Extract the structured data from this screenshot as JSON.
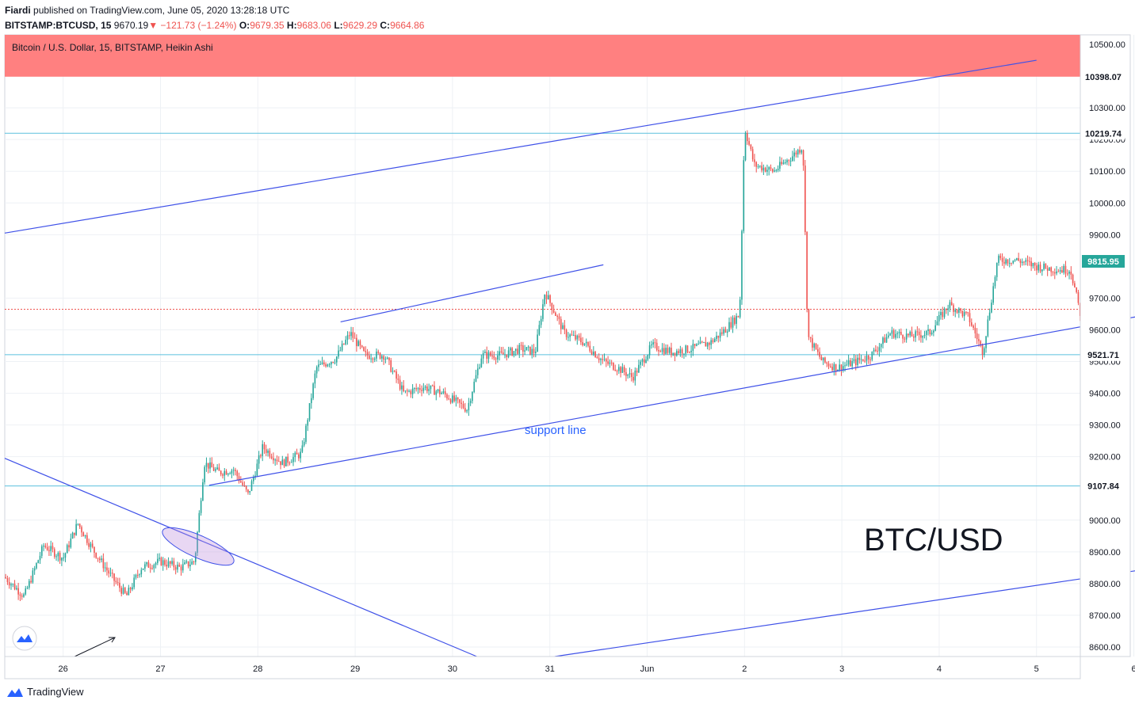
{
  "header": {
    "author": "Fiardi",
    "published_text": "published on TradingView.com, June 05, 2020 13:28:18 UTC",
    "symbol": "BITSTAMP:BTCUSD, 15",
    "last": "9670.19",
    "change": "−121.73 (−1.24%)",
    "o_label": "O:",
    "o": "9679.35",
    "h_label": "H:",
    "h": "9683.06",
    "l_label": "L:",
    "l": "9629.29",
    "c_label": "C:",
    "c": "9664.86"
  },
  "footer": {
    "brand": "TradingView"
  },
  "colors": {
    "up": "#26a69a",
    "down": "#ef5350",
    "trendline": "#3f51e8",
    "hline": "#5bc0de",
    "resistance_zone": "#ff8080",
    "grid": "#eef1f5"
  },
  "chart_data": {
    "type": "candlestick",
    "title": "Bitcoin / U.S. Dollar, 15, BITSTAMP, Heikin Ashi",
    "chart_style": "Heikin Ashi",
    "interval": "15",
    "annotation_text": "support line",
    "watermark": "BTC/USD",
    "x_tick_labels": [
      "26",
      "27",
      "28",
      "29",
      "30",
      "31",
      "Jun",
      "2",
      "3",
      "4",
      "5",
      "6"
    ],
    "y_tick_labels": [
      "10500.00",
      "10300.00",
      "10200.00",
      "10100.00",
      "10000.00",
      "9900.00",
      "9700.00",
      "9600.00",
      "9500.00",
      "9400.00",
      "9300.00",
      "9200.00",
      "9000.00",
      "8900.00",
      "8800.00",
      "8700.00",
      "8600.00"
    ],
    "ylim": [
      8570,
      10530
    ],
    "xlim": [
      25.4,
      6.45
    ],
    "current_price_line": 9664.86,
    "price_tags": [
      {
        "value": 10398.07,
        "label": "10398.07",
        "color": "#131722"
      },
      {
        "value": 10219.74,
        "label": "10219.74",
        "color": "#131722"
      },
      {
        "value": 9815.95,
        "label": "9815.95",
        "color": "#26a69a"
      },
      {
        "value": 9521.71,
        "label": "9521.71",
        "color": "#131722"
      },
      {
        "value": 9107.84,
        "label": "9107.84",
        "color": "#131722"
      }
    ],
    "horizontal_levels": [
      10219.74,
      9521.71,
      9107.84
    ],
    "resistance_zone": [
      10398.07,
      10530
    ],
    "trendlines": [
      {
        "name": "upper channel",
        "from": [
          25.4,
          9905
        ],
        "to": [
          5.0,
          10450
        ]
      },
      {
        "name": "support line",
        "from": [
          27.5,
          9110
        ],
        "to": [
          6.45,
          9665
        ]
      },
      {
        "name": "upper short",
        "from": [
          28.85,
          9625
        ],
        "to": [
          31.55,
          9805
        ]
      },
      {
        "name": "lower descending",
        "from": [
          25.4,
          9195
        ],
        "to": [
          30.25,
          8570
        ]
      },
      {
        "name": "lower channel",
        "from": [
          31.05,
          8570
        ],
        "to": [
          6.45,
          8860
        ]
      }
    ],
    "price_path": [
      [
        25.4,
        8820
      ],
      [
        25.6,
        8760
      ],
      [
        25.8,
        8920
      ],
      [
        26.0,
        8880
      ],
      [
        26.15,
        8990
      ],
      [
        26.3,
        8910
      ],
      [
        26.5,
        8820
      ],
      [
        26.65,
        8760
      ],
      [
        26.8,
        8850
      ],
      [
        27.0,
        8870
      ],
      [
        27.2,
        8850
      ],
      [
        27.35,
        8870
      ],
      [
        27.45,
        9180
      ],
      [
        27.6,
        9150
      ],
      [
        27.75,
        9160
      ],
      [
        27.9,
        9080
      ],
      [
        28.05,
        9230
      ],
      [
        28.25,
        9180
      ],
      [
        28.45,
        9210
      ],
      [
        28.6,
        9480
      ],
      [
        28.8,
        9510
      ],
      [
        28.95,
        9590
      ],
      [
        29.1,
        9520
      ],
      [
        29.3,
        9520
      ],
      [
        29.5,
        9400
      ],
      [
        29.7,
        9420
      ],
      [
        29.9,
        9400
      ],
      [
        30.15,
        9350
      ],
      [
        30.3,
        9520
      ],
      [
        30.5,
        9520
      ],
      [
        30.7,
        9540
      ],
      [
        30.85,
        9530
      ],
      [
        30.95,
        9720
      ],
      [
        31.15,
        9590
      ],
      [
        31.35,
        9560
      ],
      [
        31.55,
        9500
      ],
      [
        31.7,
        9480
      ],
      [
        31.85,
        9450
      ],
      [
        32.05,
        9550
      ],
      [
        32.25,
        9530
      ],
      [
        32.45,
        9540
      ],
      [
        32.65,
        9560
      ],
      [
        32.8,
        9600
      ],
      [
        32.95,
        9650
      ],
      [
        33.0,
        10240
      ],
      [
        33.1,
        10120
      ],
      [
        33.3,
        10100
      ],
      [
        33.5,
        10150
      ],
      [
        33.6,
        10180
      ],
      [
        33.65,
        9580
      ],
      [
        33.8,
        9500
      ],
      [
        33.95,
        9480
      ],
      [
        34.15,
        9500
      ],
      [
        34.3,
        9520
      ],
      [
        34.5,
        9590
      ],
      [
        34.7,
        9580
      ],
      [
        34.9,
        9590
      ],
      [
        35.1,
        9680
      ],
      [
        35.3,
        9640
      ],
      [
        35.45,
        9530
      ],
      [
        35.6,
        9820
      ],
      [
        35.8,
        9820
      ],
      [
        36.0,
        9800
      ],
      [
        36.2,
        9790
      ],
      [
        36.35,
        9790
      ],
      [
        36.45,
        9650
      ],
      [
        36.55,
        9664
      ]
    ]
  }
}
